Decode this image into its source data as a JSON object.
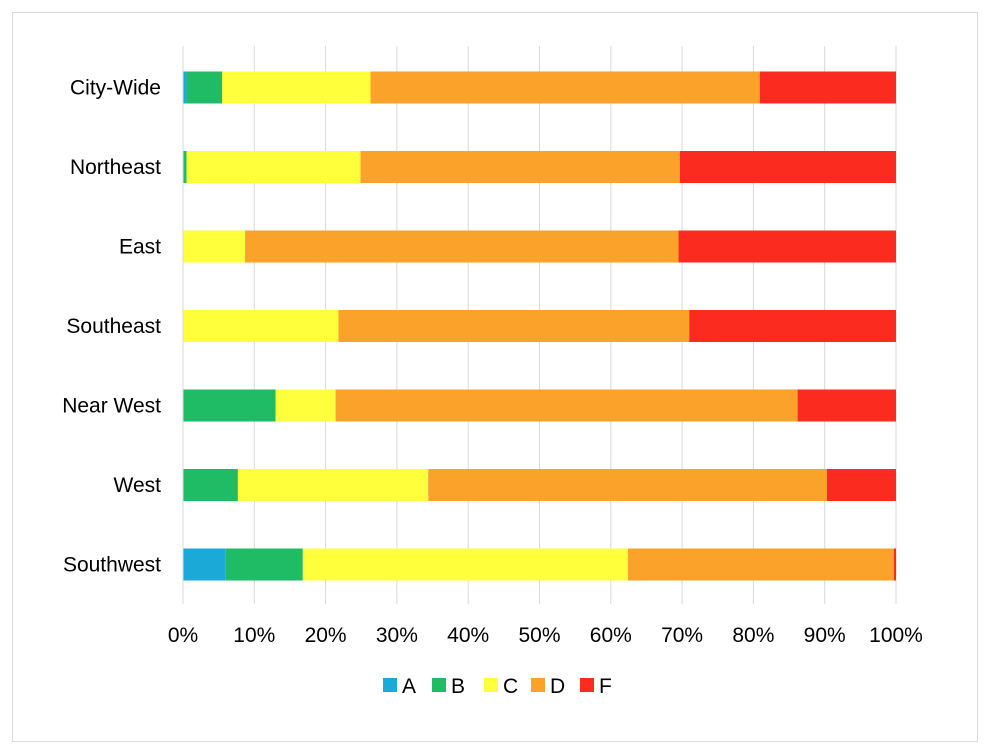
{
  "chart_data": {
    "type": "bar",
    "orientation": "horizontal",
    "stacked": "percent",
    "categories": [
      "City-Wide",
      "Northeast",
      "East",
      "Southeast",
      "Near West",
      "West",
      "Southwest"
    ],
    "series": [
      {
        "name": "A",
        "color": "#1ba9d8",
        "values": [
          0.5,
          0,
          0,
          0,
          0,
          0,
          6.0
        ]
      },
      {
        "name": "B",
        "color": "#1fbb65",
        "values": [
          5.0,
          0.5,
          0,
          0,
          13.0,
          7.7,
          10.8
        ]
      },
      {
        "name": "C",
        "color": "#ffff3c",
        "values": [
          20.8,
          24.4,
          8.7,
          21.8,
          8.4,
          26.7,
          45.6
        ]
      },
      {
        "name": "D",
        "color": "#faa229",
        "values": [
          54.6,
          44.8,
          60.8,
          49.2,
          64.8,
          55.9,
          37.3
        ]
      },
      {
        "name": "F",
        "color": "#fc2b1f",
        "values": [
          19.1,
          30.3,
          30.5,
          29.0,
          13.8,
          9.7,
          0.3
        ]
      }
    ],
    "x_ticks": [
      "0%",
      "10%",
      "20%",
      "30%",
      "40%",
      "50%",
      "60%",
      "70%",
      "80%",
      "90%",
      "100%"
    ],
    "xlim": [
      0,
      100
    ],
    "grid": "vertical",
    "legend": "bottom",
    "title": "",
    "xlabel": "",
    "ylabel": ""
  }
}
